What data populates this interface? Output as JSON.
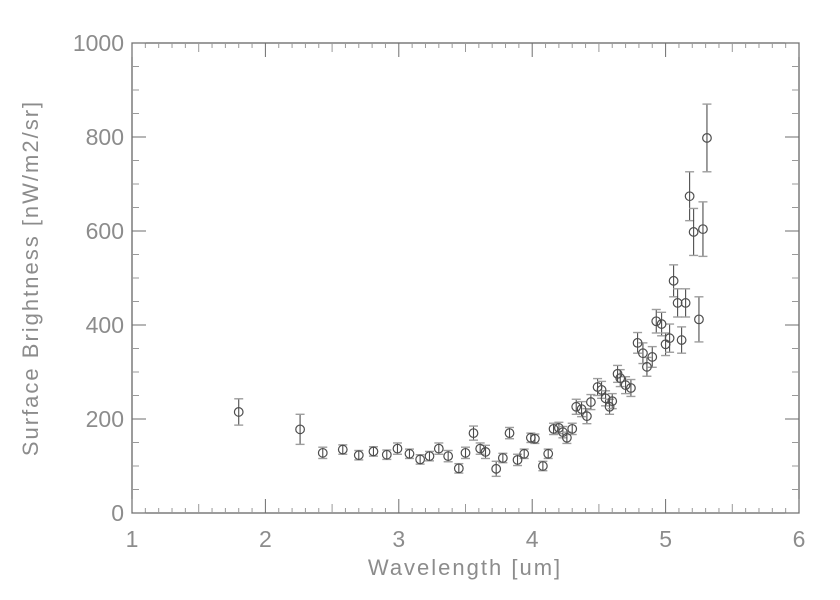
{
  "chart_data": {
    "type": "scatter",
    "title": "",
    "xlabel": "Wavelength [um]",
    "ylabel": "Surface Brightness [nW/m2/sr]",
    "xlim": [
      1,
      6
    ],
    "ylim": [
      0,
      1000
    ],
    "x_ticks": [
      1,
      2,
      3,
      4,
      5,
      6
    ],
    "x_tick_labels": [
      "1",
      "2",
      "3",
      "4",
      "5",
      "6"
    ],
    "y_ticks": [
      0,
      200,
      400,
      600,
      800,
      1000
    ],
    "y_tick_labels": [
      "0",
      "200",
      "400",
      "600",
      "800",
      "1000"
    ],
    "x_minor_step": 0.1,
    "y_minor_step": 50,
    "grid": false,
    "legend": false,
    "marker": "open-circle",
    "error_bars": "vertical-with-caps",
    "series": [
      {
        "name": "surface-brightness",
        "points": [
          {
            "x": 1.8,
            "y": 215,
            "err": 28
          },
          {
            "x": 2.26,
            "y": 178,
            "err": 32
          },
          {
            "x": 2.43,
            "y": 128,
            "err": 12
          },
          {
            "x": 2.58,
            "y": 135,
            "err": 10
          },
          {
            "x": 2.7,
            "y": 123,
            "err": 10
          },
          {
            "x": 2.81,
            "y": 131,
            "err": 10
          },
          {
            "x": 2.91,
            "y": 124,
            "err": 10
          },
          {
            "x": 2.99,
            "y": 137,
            "err": 12
          },
          {
            "x": 3.08,
            "y": 126,
            "err": 10
          },
          {
            "x": 3.16,
            "y": 114,
            "err": 10
          },
          {
            "x": 3.23,
            "y": 121,
            "err": 10
          },
          {
            "x": 3.3,
            "y": 137,
            "err": 12
          },
          {
            "x": 3.37,
            "y": 121,
            "err": 12
          },
          {
            "x": 3.45,
            "y": 95,
            "err": 10
          },
          {
            "x": 3.5,
            "y": 128,
            "err": 12
          },
          {
            "x": 3.56,
            "y": 170,
            "err": 15
          },
          {
            "x": 3.61,
            "y": 137,
            "err": 12
          },
          {
            "x": 3.65,
            "y": 130,
            "err": 14
          },
          {
            "x": 3.73,
            "y": 94,
            "err": 16
          },
          {
            "x": 3.78,
            "y": 117,
            "err": 10
          },
          {
            "x": 3.83,
            "y": 170,
            "err": 12
          },
          {
            "x": 3.89,
            "y": 113,
            "err": 12
          },
          {
            "x": 3.94,
            "y": 126,
            "err": 10
          },
          {
            "x": 3.99,
            "y": 160,
            "err": 10
          },
          {
            "x": 4.02,
            "y": 158,
            "err": 10
          },
          {
            "x": 4.08,
            "y": 100,
            "err": 10
          },
          {
            "x": 4.12,
            "y": 126,
            "err": 10
          },
          {
            "x": 4.16,
            "y": 179,
            "err": 12
          },
          {
            "x": 4.2,
            "y": 181,
            "err": 12
          },
          {
            "x": 4.23,
            "y": 172,
            "err": 12
          },
          {
            "x": 4.26,
            "y": 160,
            "err": 12
          },
          {
            "x": 4.3,
            "y": 179,
            "err": 12
          },
          {
            "x": 4.33,
            "y": 226,
            "err": 16
          },
          {
            "x": 4.37,
            "y": 221,
            "err": 16
          },
          {
            "x": 4.41,
            "y": 206,
            "err": 16
          },
          {
            "x": 4.44,
            "y": 236,
            "err": 16
          },
          {
            "x": 4.49,
            "y": 268,
            "err": 18
          },
          {
            "x": 4.52,
            "y": 262,
            "err": 18
          },
          {
            "x": 4.55,
            "y": 244,
            "err": 16
          },
          {
            "x": 4.58,
            "y": 226,
            "err": 16
          },
          {
            "x": 4.6,
            "y": 238,
            "err": 16
          },
          {
            "x": 4.64,
            "y": 296,
            "err": 18
          },
          {
            "x": 4.66,
            "y": 287,
            "err": 18
          },
          {
            "x": 4.7,
            "y": 272,
            "err": 18
          },
          {
            "x": 4.74,
            "y": 266,
            "err": 18
          },
          {
            "x": 4.79,
            "y": 362,
            "err": 22
          },
          {
            "x": 4.83,
            "y": 340,
            "err": 22
          },
          {
            "x": 4.86,
            "y": 311,
            "err": 20
          },
          {
            "x": 4.9,
            "y": 332,
            "err": 22
          },
          {
            "x": 4.93,
            "y": 408,
            "err": 25
          },
          {
            "x": 4.97,
            "y": 402,
            "err": 25
          },
          {
            "x": 5.0,
            "y": 359,
            "err": 24
          },
          {
            "x": 5.03,
            "y": 372,
            "err": 30
          },
          {
            "x": 5.06,
            "y": 494,
            "err": 34
          },
          {
            "x": 5.09,
            "y": 447,
            "err": 30
          },
          {
            "x": 5.12,
            "y": 368,
            "err": 28
          },
          {
            "x": 5.15,
            "y": 447,
            "err": 30
          },
          {
            "x": 5.18,
            "y": 674,
            "err": 52
          },
          {
            "x": 5.21,
            "y": 598,
            "err": 50
          },
          {
            "x": 5.25,
            "y": 412,
            "err": 48
          },
          {
            "x": 5.28,
            "y": 604,
            "err": 58
          },
          {
            "x": 5.31,
            "y": 798,
            "err": 72
          }
        ]
      }
    ]
  },
  "styles": {
    "background": "#ffffff",
    "frame_color": "#5a5a5a",
    "major_tick_color": "#6e6e6e",
    "minor_tick_color": "#999999",
    "label_color": "#8c8c8c",
    "data_color": "#4d4d4d",
    "cap_color": "#9e9e9e"
  }
}
